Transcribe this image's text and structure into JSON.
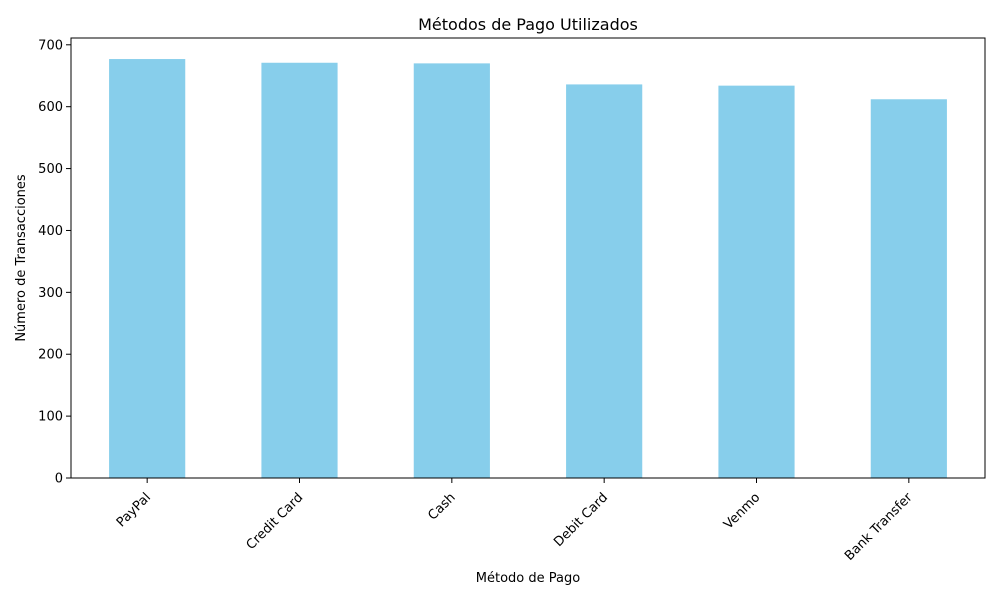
{
  "chart_data": {
    "type": "bar",
    "title": "Métodos de Pago Utilizados",
    "xlabel": "Método de Pago",
    "ylabel": "Número de Transacciones",
    "categories": [
      "PayPal",
      "Credit Card",
      "Cash",
      "Debit Card",
      "Venmo",
      "Bank Transfer"
    ],
    "values": [
      677,
      671,
      670,
      636,
      634,
      612
    ],
    "ylim": [
      0,
      711
    ],
    "yticks": [
      0,
      100,
      200,
      300,
      400,
      500,
      600,
      700
    ],
    "bar_color": "#87CEEB",
    "grid": false,
    "x_tick_rotation": "45 degrees"
  }
}
